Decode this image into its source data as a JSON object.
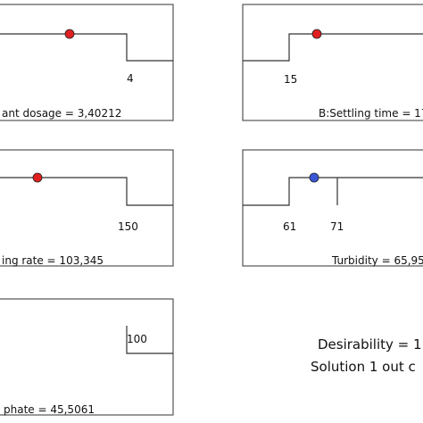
{
  "chart_data": [
    {
      "type": "line",
      "caption": "ant dosage = 3,40212",
      "value": 3.40212,
      "limit_labels": [
        "4"
      ],
      "marker_color": "#e02020"
    },
    {
      "type": "line",
      "caption": "B:Settling time = 17",
      "limit_labels": [
        "15"
      ],
      "marker_color": "#e02020"
    },
    {
      "type": "line",
      "caption": "ing rate = 103,345",
      "value": 103.345,
      "limit_labels": [
        "150"
      ],
      "marker_color": "#e02020"
    },
    {
      "type": "line",
      "caption": "Turbidity = 65,95",
      "value": 65.95,
      "limit_labels": [
        "61",
        "71"
      ],
      "marker_color": "#3a55d6"
    },
    {
      "type": "line",
      "caption": "phate = 45,5061",
      "value": 45.5061,
      "limit_labels": [
        "100"
      ]
    }
  ],
  "summary": {
    "desirability": "Desirability = 1",
    "solution": "Solution 1 out c"
  }
}
